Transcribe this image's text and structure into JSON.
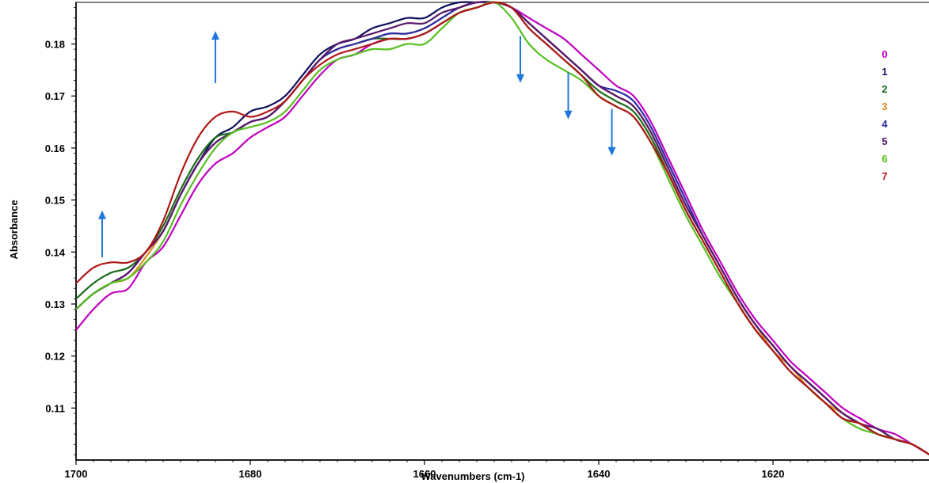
{
  "chart_data": {
    "type": "line",
    "xlabel": "Wavenumbers (cm-1)",
    "ylabel": "Absorbance",
    "xlim": [
      1700,
      1602
    ],
    "ylim": [
      0.1,
      0.188
    ],
    "x_reversed": true,
    "x_ticks": [
      1700,
      1680,
      1660,
      1640,
      1620
    ],
    "y_ticks": [
      0.11,
      0.12,
      0.13,
      0.14,
      0.15,
      0.16,
      0.17,
      0.18
    ],
    "y_tick_labels": [
      "0.11",
      "0.12",
      "0.13",
      "0.14",
      "0.15",
      "0.16",
      "0.17",
      "0.18"
    ],
    "legend_placement": "top-right",
    "grid": false,
    "x": [
      1700,
      1698,
      1696,
      1694,
      1692,
      1690,
      1688,
      1686,
      1684,
      1682,
      1680,
      1678,
      1676,
      1674,
      1672,
      1670,
      1668,
      1666,
      1664,
      1662,
      1660,
      1658,
      1656,
      1654,
      1652,
      1650,
      1648,
      1646,
      1644,
      1642,
      1640,
      1638,
      1636,
      1634,
      1632,
      1630,
      1628,
      1626,
      1624,
      1622,
      1620,
      1618,
      1616,
      1614,
      1612,
      1610,
      1608,
      1606,
      1604,
      1602
    ],
    "series": [
      {
        "name": "0",
        "color": "#c000c0",
        "values": [
          0.125,
          0.129,
          0.132,
          0.133,
          0.138,
          0.141,
          0.147,
          0.153,
          0.157,
          0.159,
          0.162,
          0.164,
          0.166,
          0.17,
          0.174,
          0.177,
          0.178,
          0.18,
          0.181,
          0.181,
          0.182,
          0.184,
          0.186,
          0.187,
          0.188,
          0.187,
          0.185,
          0.183,
          0.181,
          0.178,
          0.175,
          0.172,
          0.17,
          0.165,
          0.158,
          0.151,
          0.144,
          0.138,
          0.132,
          0.127,
          0.123,
          0.119,
          0.116,
          0.113,
          0.11,
          0.108,
          0.106,
          0.105,
          0.103,
          0.101
        ]
      },
      {
        "name": "1",
        "color": "#101060",
        "values": [
          0.129,
          0.132,
          0.134,
          0.136,
          0.14,
          0.144,
          0.151,
          0.157,
          0.162,
          0.164,
          0.167,
          0.168,
          0.17,
          0.174,
          0.178,
          0.18,
          0.181,
          0.183,
          0.184,
          0.185,
          0.185,
          0.187,
          0.188,
          0.188,
          0.188,
          0.187,
          0.184,
          0.181,
          0.178,
          0.175,
          0.172,
          0.17,
          0.168,
          0.163,
          0.156,
          0.149,
          0.143,
          0.137,
          0.131,
          0.126,
          0.122,
          0.118,
          0.115,
          0.112,
          0.109,
          0.107,
          0.106,
          0.104,
          0.103,
          0.101
        ]
      },
      {
        "name": "2",
        "color": "#1a6b1a",
        "values": [
          0.131,
          0.134,
          0.136,
          0.137,
          0.14,
          0.145,
          0.152,
          0.158,
          0.162,
          0.163,
          0.165,
          0.166,
          0.169,
          0.173,
          0.177,
          0.179,
          0.18,
          0.181,
          0.181,
          0.181,
          0.182,
          0.184,
          0.186,
          0.187,
          0.188,
          0.187,
          0.183,
          0.18,
          0.177,
          0.174,
          0.171,
          0.169,
          0.167,
          0.162,
          0.155,
          0.148,
          0.142,
          0.136,
          0.13,
          0.125,
          0.121,
          0.117,
          0.114,
          0.111,
          0.108,
          0.107,
          0.105,
          0.104,
          0.103,
          0.101
        ]
      },
      {
        "name": "3",
        "color": "#e08c1a",
        "values": [
          0.129,
          0.132,
          0.134,
          0.135,
          0.139,
          0.144,
          0.151,
          0.157,
          0.161,
          0.163,
          0.165,
          0.166,
          0.169,
          0.173,
          0.177,
          0.179,
          0.18,
          0.181,
          0.182,
          0.182,
          0.183,
          0.185,
          0.187,
          0.188,
          0.188,
          0.187,
          0.184,
          0.181,
          0.178,
          0.175,
          0.172,
          0.17,
          0.168,
          0.163,
          0.156,
          0.149,
          0.143,
          0.137,
          0.131,
          0.126,
          0.121,
          0.118,
          0.114,
          0.111,
          0.109,
          0.107,
          0.105,
          0.104,
          0.103,
          0.101
        ]
      },
      {
        "name": "4",
        "color": "#2a2aa8",
        "values": [
          0.129,
          0.132,
          0.134,
          0.136,
          0.14,
          0.144,
          0.151,
          0.157,
          0.161,
          0.163,
          0.165,
          0.166,
          0.169,
          0.173,
          0.177,
          0.179,
          0.18,
          0.181,
          0.182,
          0.182,
          0.183,
          0.185,
          0.187,
          0.188,
          0.188,
          0.187,
          0.184,
          0.181,
          0.178,
          0.175,
          0.172,
          0.171,
          0.169,
          0.164,
          0.157,
          0.15,
          0.143,
          0.137,
          0.131,
          0.126,
          0.122,
          0.118,
          0.115,
          0.112,
          0.109,
          0.107,
          0.105,
          0.104,
          0.103,
          0.101
        ]
      },
      {
        "name": "5",
        "color": "#5a1a6b",
        "values": [
          0.129,
          0.132,
          0.134,
          0.136,
          0.14,
          0.144,
          0.151,
          0.157,
          0.161,
          0.163,
          0.165,
          0.166,
          0.169,
          0.173,
          0.177,
          0.18,
          0.181,
          0.182,
          0.183,
          0.184,
          0.184,
          0.186,
          0.187,
          0.188,
          0.188,
          0.187,
          0.184,
          0.181,
          0.178,
          0.175,
          0.172,
          0.17,
          0.168,
          0.163,
          0.156,
          0.149,
          0.143,
          0.137,
          0.131,
          0.126,
          0.122,
          0.118,
          0.115,
          0.112,
          0.109,
          0.107,
          0.106,
          0.104,
          0.103,
          0.101
        ]
      },
      {
        "name": "6",
        "color": "#55c020",
        "values": [
          0.129,
          0.132,
          0.134,
          0.135,
          0.138,
          0.142,
          0.149,
          0.155,
          0.16,
          0.163,
          0.164,
          0.165,
          0.167,
          0.171,
          0.175,
          0.177,
          0.178,
          0.179,
          0.179,
          0.18,
          0.18,
          0.183,
          0.186,
          0.187,
          0.188,
          0.185,
          0.18,
          0.177,
          0.175,
          0.173,
          0.17,
          0.168,
          0.166,
          0.161,
          0.154,
          0.147,
          0.141,
          0.135,
          0.13,
          0.125,
          0.121,
          0.117,
          0.114,
          0.111,
          0.108,
          0.106,
          0.105,
          0.104,
          0.103,
          0.101
        ]
      },
      {
        "name": "7",
        "color": "#b01818",
        "values": [
          0.134,
          0.137,
          0.138,
          0.138,
          0.14,
          0.146,
          0.155,
          0.162,
          0.166,
          0.167,
          0.166,
          0.167,
          0.169,
          0.173,
          0.176,
          0.178,
          0.179,
          0.18,
          0.181,
          0.181,
          0.182,
          0.184,
          0.186,
          0.187,
          0.188,
          0.187,
          0.183,
          0.18,
          0.177,
          0.174,
          0.17,
          0.168,
          0.166,
          0.161,
          0.155,
          0.148,
          0.142,
          0.136,
          0.13,
          0.125,
          0.121,
          0.117,
          0.114,
          0.111,
          0.108,
          0.107,
          0.105,
          0.104,
          0.103,
          0.101
        ]
      }
    ],
    "annotations": {
      "arrow_color": "#1e78dc",
      "arrows": [
        {
          "x": 1697,
          "y_from": 0.139,
          "y_to": 0.148,
          "direction": "up"
        },
        {
          "x": 1684,
          "y_from": 0.1725,
          "y_to": 0.1825,
          "direction": "up"
        },
        {
          "x": 1649,
          "y_from": 0.1815,
          "y_to": 0.1725,
          "direction": "down"
        },
        {
          "x": 1643.5,
          "y_from": 0.1745,
          "y_to": 0.1655,
          "direction": "down"
        },
        {
          "x": 1638.5,
          "y_from": 0.1675,
          "y_to": 0.1585,
          "direction": "down"
        }
      ]
    }
  }
}
